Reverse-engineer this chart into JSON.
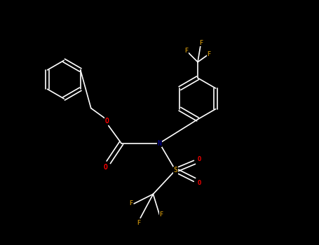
{
  "bg_color": "#000000",
  "fig_width": 4.55,
  "fig_height": 3.5,
  "dpi": 100,
  "bond_color": "#ffffff",
  "colors": {
    "C": "#ffffff",
    "N": "#00008b",
    "O": "#ff0000",
    "F": "#b8860b",
    "S": "#b8860b"
  },
  "font_size": 7,
  "bond_width": 1.2
}
